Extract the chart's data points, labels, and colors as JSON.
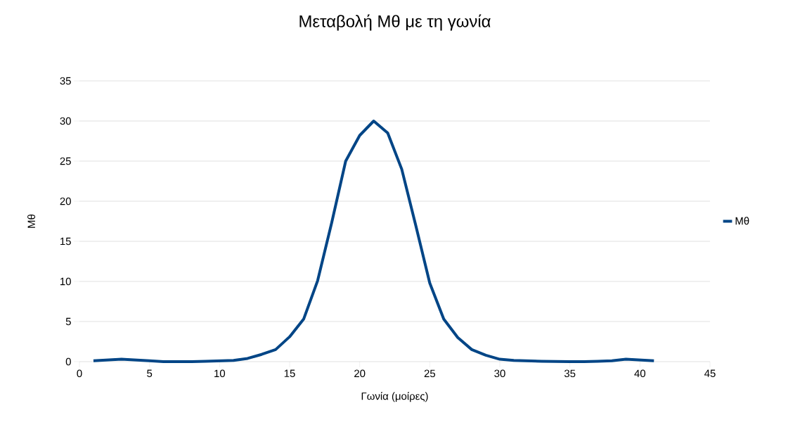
{
  "chart_data": {
    "type": "line",
    "title": "Μεταβολή Μθ με τη γωνία",
    "xlabel": "Γωνία (μοίρες)",
    "ylabel": "Μθ",
    "x": [
      1,
      2,
      3,
      4,
      5,
      6,
      7,
      8,
      9,
      10,
      11,
      12,
      13,
      14,
      15,
      16,
      17,
      18,
      19,
      20,
      21,
      22,
      23,
      24,
      25,
      26,
      27,
      28,
      29,
      30,
      31,
      32,
      33,
      34,
      35,
      36,
      37,
      38,
      39,
      40,
      41
    ],
    "series": [
      {
        "name": "Μθ",
        "color": "#004586",
        "values": [
          0.1,
          0.2,
          0.3,
          0.2,
          0.1,
          0,
          0,
          0,
          0.05,
          0.1,
          0.15,
          0.4,
          0.9,
          1.5,
          3.1,
          5.3,
          10.1,
          17.3,
          25,
          28.2,
          30,
          28.5,
          24,
          17,
          9.8,
          5.3,
          3,
          1.5,
          0.8,
          0.3,
          0.15,
          0.1,
          0.05,
          0.03,
          0,
          0,
          0.05,
          0.1,
          0.3,
          0.2,
          0.1
        ]
      }
    ],
    "xlim": [
      0,
      45
    ],
    "ylim": [
      0,
      35
    ],
    "xticks": [
      0,
      5,
      10,
      15,
      20,
      25,
      30,
      35,
      40,
      45
    ],
    "yticks": [
      0,
      5,
      10,
      15,
      20,
      25,
      30,
      35
    ],
    "grid": "y",
    "legend": "right",
    "marker": "none",
    "line_style": "solid"
  }
}
